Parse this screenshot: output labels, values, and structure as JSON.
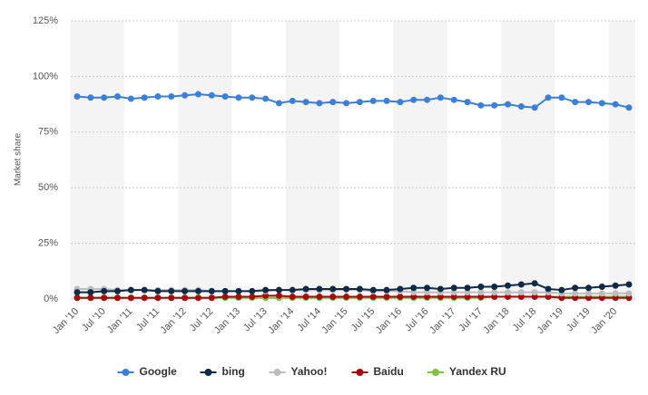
{
  "chart_data": {
    "type": "line",
    "y_label": "Market share",
    "categories": [
      "Jan '10",
      null,
      "Jul '10",
      null,
      "Jan '11",
      null,
      "Jul '11",
      null,
      "Jan '12",
      null,
      "Jul '12",
      null,
      "Jan '13",
      null,
      "Jul '13",
      null,
      "Jan '14",
      null,
      "Jul '14",
      null,
      "Jan '15",
      null,
      "Jul '15",
      null,
      "Jan '16",
      null,
      "Jul '16",
      null,
      "Jan '17",
      null,
      "Jul '17",
      null,
      "Jan '18",
      null,
      "Jul '18",
      null,
      "Jan '19",
      null,
      "Jul '19",
      null,
      "Jan '20",
      null
    ],
    "ylim": [
      0,
      125
    ],
    "yticks": [
      {
        "value": 0,
        "label": "0%"
      },
      {
        "value": 25,
        "label": "25%"
      },
      {
        "value": 50,
        "label": "50%"
      },
      {
        "value": 75,
        "label": "75%"
      },
      {
        "value": 100,
        "label": "100%"
      },
      {
        "value": 125,
        "label": "125%"
      }
    ],
    "grid": true,
    "legend": "bottom",
    "series": [
      {
        "name": "Google",
        "color": "#3a7fd9",
        "values": [
          91,
          90.5,
          90.5,
          91,
          90,
          90.5,
          91,
          91,
          91.5,
          92,
          91.5,
          91,
          90.5,
          90.5,
          90,
          88,
          89,
          88.5,
          88,
          88.5,
          88,
          88.5,
          89,
          89,
          88.5,
          89.5,
          89.5,
          90.5,
          89.5,
          88.5,
          87,
          87,
          87.5,
          86.5,
          86,
          90.5,
          90.5,
          88.5,
          88.5,
          88,
          87.5,
          86
        ]
      },
      {
        "name": "bing",
        "color": "#0e2a47",
        "values": [
          3,
          3,
          3.5,
          3.5,
          4,
          4,
          3.5,
          3.5,
          3.5,
          3.5,
          3.5,
          3.5,
          3.5,
          3.5,
          4,
          4,
          4,
          4.5,
          4.5,
          4.5,
          4.5,
          4.5,
          4,
          4,
          4.5,
          5,
          5,
          4.5,
          5,
          5,
          5.5,
          5.5,
          6,
          6.5,
          7,
          4.5,
          4,
          5,
          5,
          5.5,
          6,
          6.5
        ]
      },
      {
        "name": "Yahoo!",
        "color": "#bdbdbd",
        "values": [
          4.5,
          4.5,
          4.5,
          4,
          4,
          4,
          4,
          4,
          4,
          4,
          3.5,
          3.5,
          3.5,
          3.5,
          3.5,
          4,
          4,
          4,
          4,
          4,
          4,
          4,
          3.5,
          3.5,
          3.5,
          3,
          3,
          3,
          3,
          3,
          3,
          3,
          3,
          3,
          3,
          3,
          2.5,
          2.5,
          2.5,
          2.5,
          2.5,
          2.5
        ]
      },
      {
        "name": "Baidu",
        "color": "#a50b0b",
        "values": [
          0.5,
          0.5,
          0.5,
          0.5,
          0.5,
          0.5,
          0.5,
          0.5,
          0.5,
          0.5,
          0.5,
          1,
          1,
          1,
          1.5,
          1.5,
          1,
          1,
          1,
          1,
          1,
          1,
          1,
          1,
          1,
          1,
          1,
          1,
          1,
          1,
          1,
          1,
          1,
          1,
          1,
          1,
          0.5,
          0.5,
          0.5,
          0.5,
          0.5,
          0.5
        ]
      },
      {
        "name": "Yandex RU",
        "color": "#7fc241",
        "values": [
          0.5,
          0.5,
          0.5,
          0.5,
          0.5,
          0.5,
          0.5,
          0.5,
          0.5,
          0.5,
          0.5,
          0.5,
          0.5,
          0.5,
          0.5,
          0.5,
          0.5,
          0.5,
          0.5,
          0.5,
          0.5,
          0.5,
          0.5,
          0.5,
          0.5,
          0.5,
          0.5,
          0.5,
          0.5,
          0.5,
          0.5,
          1,
          1,
          1,
          1,
          1,
          1,
          1,
          1,
          1,
          1,
          1
        ]
      }
    ]
  }
}
